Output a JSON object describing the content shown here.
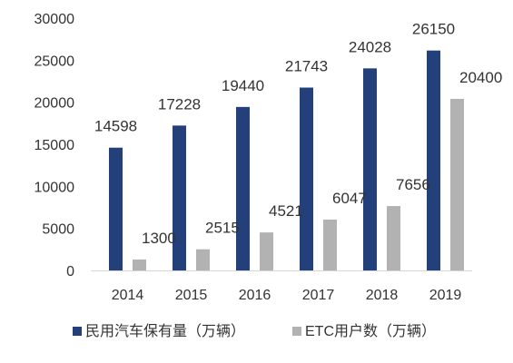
{
  "chart_data": {
    "type": "bar",
    "categories": [
      "2014",
      "2015",
      "2016",
      "2017",
      "2018",
      "2019"
    ],
    "series": [
      {
        "name": "民用汽车保有量（万辆）",
        "values": [
          14598,
          17228,
          19440,
          21743,
          24028,
          26150
        ],
        "color": "#24407a"
      },
      {
        "name": "ETC用户数（万辆）",
        "values": [
          1300,
          2515,
          4521,
          6047,
          7656,
          20400
        ],
        "color": "#b2b2b2"
      }
    ],
    "ylim": [
      0,
      30000
    ],
    "yticks": [
      "0",
      "5000",
      "10000",
      "15000",
      "20000",
      "25000",
      "30000"
    ],
    "grid": false,
    "legend": "bottom",
    "title": "",
    "xlabel": "",
    "ylabel": ""
  }
}
